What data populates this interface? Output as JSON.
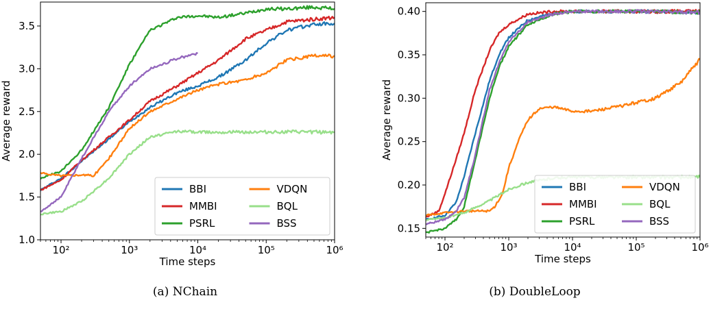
{
  "chart_data": [
    {
      "type": "line",
      "caption": "(a) NChain",
      "xlabel": "Time steps",
      "ylabel": "Average reward",
      "xscale": "log",
      "xlim": [
        50,
        1000000
      ],
      "ylim": [
        1.0,
        3.78
      ],
      "x_ticks": [
        {
          "value": 100,
          "label": "10²"
        },
        {
          "value": 1000,
          "label": "10³"
        },
        {
          "value": 10000,
          "label": "10⁴"
        },
        {
          "value": 100000,
          "label": "10⁵"
        },
        {
          "value": 1000000,
          "label": "10⁶"
        }
      ],
      "y_ticks": [
        {
          "value": 1.0,
          "label": "1.0"
        },
        {
          "value": 1.5,
          "label": "1.5"
        },
        {
          "value": 2.0,
          "label": "2.0"
        },
        {
          "value": 2.5,
          "label": "2.5"
        },
        {
          "value": 3.0,
          "label": "3.0"
        },
        {
          "value": 3.5,
          "label": "3.5"
        }
      ],
      "legend": {
        "placement": "lower-right",
        "columns": 2
      },
      "series": [
        {
          "name": "BBI",
          "color": "#1f77b4",
          "x": [
            50,
            100,
            200,
            500,
            1000,
            2000,
            5000,
            10000,
            20000,
            50000,
            100000,
            200000,
            500000,
            1000000
          ],
          "y": [
            1.58,
            1.72,
            1.92,
            2.18,
            2.38,
            2.55,
            2.72,
            2.8,
            2.9,
            3.1,
            3.3,
            3.45,
            3.52,
            3.53
          ]
        },
        {
          "name": "MMBI",
          "color": "#d62728",
          "x": [
            50,
            100,
            200,
            500,
            1000,
            2000,
            5000,
            10000,
            20000,
            50000,
            100000,
            200000,
            500000,
            1000000
          ],
          "y": [
            1.58,
            1.7,
            1.93,
            2.2,
            2.4,
            2.62,
            2.8,
            2.95,
            3.1,
            3.35,
            3.45,
            3.55,
            3.58,
            3.6
          ]
        },
        {
          "name": "PSRL",
          "color": "#2ca02c",
          "x": [
            50,
            100,
            200,
            500,
            1000,
            2000,
            5000,
            10000,
            20000,
            50000,
            100000,
            200000,
            500000,
            1000000
          ],
          "y": [
            1.72,
            1.8,
            2.05,
            2.55,
            3.05,
            3.45,
            3.6,
            3.62,
            3.6,
            3.65,
            3.7,
            3.7,
            3.72,
            3.7
          ]
        },
        {
          "name": "VDQN",
          "color": "#ff7f0e",
          "x": [
            50,
            100,
            200,
            300,
            500,
            1000,
            2000,
            5000,
            10000,
            20000,
            50000,
            100000,
            200000,
            500000,
            1000000
          ],
          "y": [
            1.78,
            1.75,
            1.76,
            1.75,
            1.95,
            2.3,
            2.5,
            2.65,
            2.75,
            2.82,
            2.87,
            2.95,
            3.1,
            3.15,
            3.15
          ]
        },
        {
          "name": "BQL",
          "color": "#98df8a",
          "x": [
            50,
            100,
            200,
            500,
            1000,
            2000,
            5000,
            10000,
            100000,
            1000000
          ],
          "y": [
            1.3,
            1.33,
            1.45,
            1.72,
            2.0,
            2.2,
            2.27,
            2.26,
            2.26,
            2.26
          ]
        },
        {
          "name": "BSS",
          "color": "#9467bd",
          "x": [
            50,
            100,
            200,
            500,
            1000,
            2000,
            5000,
            10000
          ],
          "y": [
            1.33,
            1.5,
            1.95,
            2.5,
            2.8,
            3.0,
            3.12,
            3.18
          ]
        }
      ]
    },
    {
      "type": "line",
      "caption": "(b) DoubleLoop",
      "xlabel": "Time steps",
      "ylabel": "Average reward",
      "xscale": "log",
      "xlim": [
        50,
        1000000
      ],
      "ylim": [
        0.14,
        0.41
      ],
      "x_ticks": [
        {
          "value": 100,
          "label": "10²"
        },
        {
          "value": 1000,
          "label": "10³"
        },
        {
          "value": 10000,
          "label": "10⁴"
        },
        {
          "value": 100000,
          "label": "10⁵"
        },
        {
          "value": 1000000,
          "label": "10⁶"
        }
      ],
      "y_ticks": [
        {
          "value": 0.15,
          "label": "0.15"
        },
        {
          "value": 0.2,
          "label": "0.20"
        },
        {
          "value": 0.25,
          "label": "0.25"
        },
        {
          "value": 0.3,
          "label": "0.30"
        },
        {
          "value": 0.35,
          "label": "0.35"
        },
        {
          "value": 0.4,
          "label": "0.40"
        }
      ],
      "legend": {
        "placement": "lower-right",
        "columns": 2
      },
      "series": [
        {
          "name": "BBI",
          "color": "#1f77b4",
          "x": [
            50,
            100,
            150,
            200,
            300,
            500,
            700,
            1000,
            2000,
            5000,
            10000,
            100000,
            1000000
          ],
          "y": [
            0.16,
            0.165,
            0.18,
            0.21,
            0.26,
            0.32,
            0.35,
            0.37,
            0.39,
            0.398,
            0.4,
            0.4,
            0.399
          ]
        },
        {
          "name": "MMBI",
          "color": "#d62728",
          "x": [
            50,
            80,
            100,
            150,
            200,
            300,
            500,
            700,
            1000,
            2000,
            5000,
            10000,
            1000000
          ],
          "y": [
            0.163,
            0.17,
            0.19,
            0.23,
            0.26,
            0.31,
            0.355,
            0.375,
            0.385,
            0.397,
            0.4,
            0.4,
            0.4
          ]
        },
        {
          "name": "PSRL",
          "color": "#2ca02c",
          "x": [
            50,
            100,
            150,
            200,
            300,
            500,
            700,
            1000,
            2000,
            5000,
            10000,
            100000,
            1000000
          ],
          "y": [
            0.145,
            0.15,
            0.16,
            0.175,
            0.23,
            0.3,
            0.335,
            0.36,
            0.385,
            0.397,
            0.4,
            0.4,
            0.399
          ]
        },
        {
          "name": "VDQN",
          "color": "#ff7f0e",
          "x": [
            50,
            100,
            200,
            500,
            600,
            800,
            1000,
            1500,
            2000,
            3000,
            5000,
            10000,
            20000,
            50000,
            100000,
            200000,
            500000,
            1000000
          ],
          "y": [
            0.165,
            0.168,
            0.17,
            0.17,
            0.175,
            0.19,
            0.22,
            0.255,
            0.275,
            0.288,
            0.29,
            0.285,
            0.285,
            0.29,
            0.295,
            0.3,
            0.318,
            0.345
          ]
        },
        {
          "name": "BQL",
          "color": "#98df8a",
          "x": [
            50,
            100,
            200,
            500,
            1000,
            2000,
            5000,
            10000,
            100000,
            1000000
          ],
          "y": [
            0.16,
            0.162,
            0.168,
            0.182,
            0.195,
            0.203,
            0.208,
            0.209,
            0.209,
            0.209
          ]
        },
        {
          "name": "BSS",
          "color": "#9467bd",
          "x": [
            50,
            100,
            150,
            200,
            300,
            500,
            700,
            1000,
            2000,
            5000,
            10000,
            100000,
            1000000
          ],
          "y": [
            0.155,
            0.16,
            0.17,
            0.185,
            0.235,
            0.31,
            0.34,
            0.365,
            0.388,
            0.397,
            0.4,
            0.4,
            0.399
          ]
        }
      ]
    }
  ]
}
